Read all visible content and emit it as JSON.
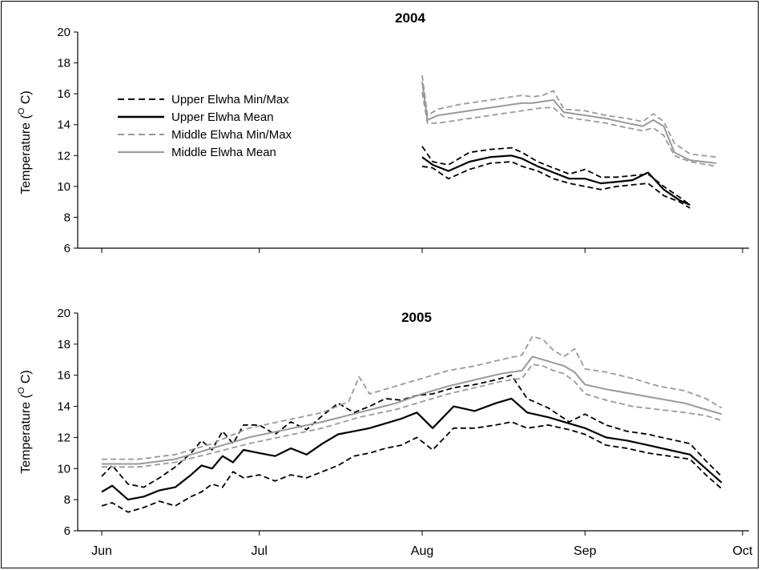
{
  "colors": {
    "upper": "#000000",
    "middle": "#999999"
  },
  "chart_data": [
    {
      "type": "line",
      "title": "2004",
      "xlabel": "",
      "ylabel": "Temperature (O C)",
      "ylabel_parts": {
        "pre": "Temperature (",
        "sup": "O",
        "post": " C)"
      },
      "ylim": [
        6,
        20
      ],
      "yticks": [
        "6",
        "8",
        "10",
        "12",
        "14",
        "16",
        "18",
        "20"
      ],
      "xlim": [
        "Jun 1",
        "Oct 1"
      ],
      "legend": "top-left",
      "series": [
        {
          "name": "Upper Elwha Min/Max",
          "role": "upper-max",
          "style": "dashed",
          "color": "#000000",
          "x": [
            "Aug 1",
            "Aug 3",
            "Aug 6",
            "Aug 10",
            "Aug 14",
            "Aug 18",
            "Aug 20",
            "Aug 23",
            "Aug 26",
            "Aug 29",
            "Sep 1",
            "Sep 4",
            "Sep 7",
            "Sep 10",
            "Sep 13",
            "Sep 16",
            "Sep 19",
            "Sep 21"
          ],
          "values": [
            12.6,
            11.6,
            11.4,
            12.2,
            12.4,
            12.5,
            12.2,
            11.6,
            11.2,
            10.8,
            11.1,
            10.6,
            10.6,
            10.7,
            10.8,
            10.0,
            9.3,
            8.8
          ]
        },
        {
          "name": "Upper Elwha Min/Max",
          "role": "upper-min",
          "style": "dashed",
          "color": "#000000",
          "x": [
            "Aug 1",
            "Aug 3",
            "Aug 6",
            "Aug 10",
            "Aug 14",
            "Aug 18",
            "Aug 20",
            "Aug 23",
            "Aug 26",
            "Aug 29",
            "Sep 1",
            "Sep 4",
            "Sep 7",
            "Sep 10",
            "Sep 13",
            "Sep 16",
            "Sep 19",
            "Sep 21"
          ],
          "values": [
            11.3,
            11.2,
            10.5,
            11.1,
            11.5,
            11.6,
            11.3,
            11.0,
            10.5,
            10.2,
            10.0,
            9.8,
            10.0,
            10.1,
            10.2,
            9.4,
            9.0,
            8.6
          ]
        },
        {
          "name": "Upper Elwha Mean",
          "role": "upper-mean",
          "style": "solid",
          "color": "#000000",
          "x": [
            "Aug 1",
            "Aug 3",
            "Aug 6",
            "Aug 10",
            "Aug 14",
            "Aug 18",
            "Aug 20",
            "Aug 23",
            "Aug 26",
            "Aug 29",
            "Sep 1",
            "Sep 4",
            "Sep 7",
            "Sep 10",
            "Sep 13",
            "Sep 16",
            "Sep 19",
            "Sep 21"
          ],
          "values": [
            11.9,
            11.4,
            11.0,
            11.6,
            11.9,
            12.0,
            11.8,
            11.3,
            10.9,
            10.5,
            10.5,
            10.2,
            10.3,
            10.4,
            10.9,
            9.8,
            9.1,
            8.8
          ]
        },
        {
          "name": "Middle Elwha Min/Max",
          "role": "middle-max",
          "style": "dashed",
          "color": "#999999",
          "x": [
            "Aug 1",
            "Aug 2",
            "Aug 4",
            "Aug 8",
            "Aug 12",
            "Aug 16",
            "Aug 20",
            "Aug 22",
            "Aug 24",
            "Aug 26",
            "Aug 28",
            "Sep 1",
            "Sep 5",
            "Sep 9",
            "Sep 12",
            "Sep 14",
            "Sep 16",
            "Sep 18",
            "Sep 21",
            "Sep 26"
          ],
          "values": [
            17.2,
            14.6,
            15.0,
            15.3,
            15.5,
            15.7,
            15.9,
            15.8,
            15.9,
            16.2,
            15.0,
            14.9,
            14.6,
            14.4,
            14.2,
            14.7,
            14.2,
            12.8,
            12.1,
            11.9
          ]
        },
        {
          "name": "Middle Elwha Min/Max",
          "role": "middle-min",
          "style": "dashed",
          "color": "#999999",
          "x": [
            "Aug 1",
            "Aug 2",
            "Aug 4",
            "Aug 8",
            "Aug 12",
            "Aug 16",
            "Aug 20",
            "Aug 22",
            "Aug 24",
            "Aug 26",
            "Aug 28",
            "Sep 1",
            "Sep 5",
            "Sep 9",
            "Sep 12",
            "Sep 14",
            "Sep 16",
            "Sep 18",
            "Sep 21",
            "Sep 26"
          ],
          "values": [
            16.1,
            14.1,
            14.1,
            14.3,
            14.5,
            14.7,
            14.9,
            15.0,
            15.1,
            15.1,
            14.5,
            14.3,
            14.1,
            13.8,
            13.6,
            13.8,
            13.3,
            12.0,
            11.6,
            11.3
          ]
        },
        {
          "name": "Middle Elwha Mean",
          "role": "middle-mean",
          "style": "solid",
          "color": "#999999",
          "x": [
            "Aug 1",
            "Aug 2",
            "Aug 4",
            "Aug 8",
            "Aug 12",
            "Aug 16",
            "Aug 20",
            "Aug 22",
            "Aug 24",
            "Aug 26",
            "Aug 28",
            "Sep 1",
            "Sep 5",
            "Sep 9",
            "Sep 12",
            "Sep 14",
            "Sep 16",
            "Sep 18",
            "Sep 21",
            "Sep 26"
          ],
          "values": [
            16.8,
            14.3,
            14.6,
            14.8,
            15.0,
            15.2,
            15.4,
            15.4,
            15.5,
            15.6,
            14.8,
            14.6,
            14.4,
            14.1,
            13.9,
            14.3,
            13.9,
            12.2,
            11.7,
            11.5
          ]
        }
      ]
    },
    {
      "type": "line",
      "title": "2005",
      "xlabel": "",
      "ylabel": "Temperature (O C)",
      "ylabel_parts": {
        "pre": "Temperature (",
        "sup": "O",
        "post": " C)"
      },
      "ylim": [
        6,
        20
      ],
      "yticks": [
        "6",
        "8",
        "10",
        "12",
        "14",
        "16",
        "18",
        "20"
      ],
      "xlim": [
        "Jun 1",
        "Oct 1"
      ],
      "xticks": [
        "Jun",
        "Jul",
        "Aug",
        "Sep",
        "Oct"
      ],
      "series": [
        {
          "name": "Upper Elwha Min/Max",
          "role": "upper-max",
          "style": "dashed",
          "color": "#000000",
          "x": [
            "Jun 1",
            "Jun 3",
            "Jun 6",
            "Jun 9",
            "Jun 12",
            "Jun 15",
            "Jun 18",
            "Jun 20",
            "Jun 22",
            "Jun 24",
            "Jun 26",
            "Jun 28",
            "Jul 1",
            "Jul 4",
            "Jul 7",
            "Jul 10",
            "Jul 13",
            "Jul 16",
            "Jul 19",
            "Jul 22",
            "Jul 25",
            "Jul 28",
            "Jul 31",
            "Aug 3",
            "Aug 7",
            "Aug 11",
            "Aug 15",
            "Aug 18",
            "Aug 21",
            "Aug 25",
            "Aug 29",
            "Sep 1",
            "Sep 5",
            "Sep 9",
            "Sep 13",
            "Sep 17",
            "Sep 21",
            "Sep 24",
            "Sep 27"
          ],
          "values": [
            9.5,
            10.2,
            9.0,
            8.8,
            9.4,
            10.1,
            11.0,
            11.8,
            11.2,
            12.4,
            11.6,
            12.8,
            12.8,
            12.2,
            13.0,
            12.5,
            13.4,
            14.2,
            13.6,
            14.0,
            14.5,
            14.4,
            14.7,
            14.8,
            15.2,
            15.4,
            15.7,
            16.0,
            14.5,
            13.9,
            13.0,
            13.5,
            12.8,
            12.4,
            12.2,
            11.9,
            11.6,
            10.5,
            9.5
          ]
        },
        {
          "name": "Upper Elwha Min/Max",
          "role": "upper-min",
          "style": "dashed",
          "color": "#000000",
          "x": [
            "Jun 1",
            "Jun 3",
            "Jun 6",
            "Jun 9",
            "Jun 12",
            "Jun 15",
            "Jun 18",
            "Jun 20",
            "Jun 22",
            "Jun 24",
            "Jun 26",
            "Jun 28",
            "Jul 1",
            "Jul 4",
            "Jul 7",
            "Jul 10",
            "Jul 13",
            "Jul 16",
            "Jul 19",
            "Jul 22",
            "Jul 25",
            "Jul 28",
            "Jul 31",
            "Aug 3",
            "Aug 7",
            "Aug 11",
            "Aug 15",
            "Aug 18",
            "Aug 21",
            "Aug 25",
            "Aug 29",
            "Sep 1",
            "Sep 5",
            "Sep 9",
            "Sep 13",
            "Sep 17",
            "Sep 21",
            "Sep 24",
            "Sep 27"
          ],
          "values": [
            7.6,
            7.8,
            7.2,
            7.5,
            7.9,
            7.6,
            8.2,
            8.5,
            9.0,
            8.8,
            9.8,
            9.4,
            9.6,
            9.2,
            9.6,
            9.4,
            9.8,
            10.2,
            10.8,
            11.0,
            11.3,
            11.5,
            12.0,
            11.2,
            12.6,
            12.6,
            12.8,
            13.0,
            12.6,
            12.8,
            12.5,
            12.2,
            11.5,
            11.3,
            11.0,
            10.8,
            10.6,
            9.6,
            8.7
          ]
        },
        {
          "name": "Upper Elwha Mean",
          "role": "upper-mean",
          "style": "solid",
          "color": "#000000",
          "x": [
            "Jun 1",
            "Jun 3",
            "Jun 6",
            "Jun 9",
            "Jun 12",
            "Jun 15",
            "Jun 18",
            "Jun 20",
            "Jun 22",
            "Jun 24",
            "Jun 26",
            "Jun 28",
            "Jul 1",
            "Jul 4",
            "Jul 7",
            "Jul 10",
            "Jul 13",
            "Jul 16",
            "Jul 19",
            "Jul 22",
            "Jul 25",
            "Jul 28",
            "Jul 31",
            "Aug 3",
            "Aug 7",
            "Aug 11",
            "Aug 15",
            "Aug 18",
            "Aug 21",
            "Aug 25",
            "Aug 29",
            "Sep 1",
            "Sep 5",
            "Sep 9",
            "Sep 13",
            "Sep 17",
            "Sep 21",
            "Sep 24",
            "Sep 27"
          ],
          "values": [
            8.5,
            8.9,
            8.0,
            8.2,
            8.6,
            8.8,
            9.6,
            10.2,
            10.0,
            10.8,
            10.4,
            11.2,
            11.0,
            10.8,
            11.3,
            10.9,
            11.6,
            12.2,
            12.4,
            12.6,
            12.9,
            13.2,
            13.6,
            12.6,
            14.0,
            13.7,
            14.2,
            14.5,
            13.6,
            13.3,
            12.9,
            12.6,
            12.0,
            11.8,
            11.5,
            11.2,
            10.9,
            10.0,
            9.1
          ]
        },
        {
          "name": "Middle Elwha Min/Max",
          "role": "middle-max",
          "style": "dashed",
          "color": "#999999",
          "x": [
            "Jun 1",
            "Jun 8",
            "Jun 15",
            "Jun 22",
            "Jun 29",
            "Jul 6",
            "Jul 13",
            "Jul 18",
            "Jul 20",
            "Jul 22",
            "Jul 27",
            "Aug 1",
            "Aug 6",
            "Aug 11",
            "Aug 16",
            "Aug 20",
            "Aug 22",
            "Aug 24",
            "Aug 26",
            "Aug 28",
            "Aug 30",
            "Sep 1",
            "Sep 5",
            "Sep 10",
            "Sep 15",
            "Sep 20",
            "Sep 24",
            "Sep 27"
          ],
          "values": [
            10.6,
            10.6,
            10.9,
            11.6,
            12.6,
            13.1,
            13.6,
            14.3,
            15.9,
            14.8,
            15.3,
            15.8,
            16.3,
            16.6,
            17.0,
            17.3,
            18.5,
            18.3,
            17.6,
            17.2,
            17.7,
            16.4,
            16.2,
            15.8,
            15.3,
            15.0,
            14.5,
            13.9
          ]
        },
        {
          "name": "Middle Elwha Min/Max",
          "role": "middle-min",
          "style": "dashed",
          "color": "#999999",
          "x": [
            "Jun 1",
            "Jun 8",
            "Jun 15",
            "Jun 22",
            "Jun 29",
            "Jul 6",
            "Jul 13",
            "Jul 20",
            "Jul 27",
            "Aug 1",
            "Aug 6",
            "Aug 11",
            "Aug 16",
            "Aug 20",
            "Aug 22",
            "Aug 24",
            "Aug 26",
            "Aug 28",
            "Aug 30",
            "Sep 1",
            "Sep 5",
            "Sep 10",
            "Sep 15",
            "Sep 20",
            "Sep 24",
            "Sep 27"
          ],
          "values": [
            10.1,
            10.1,
            10.4,
            11.0,
            11.6,
            12.1,
            12.6,
            13.3,
            13.8,
            14.3,
            14.8,
            15.2,
            15.6,
            15.8,
            16.7,
            16.6,
            16.3,
            16.1,
            15.6,
            14.8,
            14.4,
            14.0,
            13.8,
            13.6,
            13.4,
            13.1
          ]
        },
        {
          "name": "Middle Elwha Mean",
          "role": "middle-mean",
          "style": "solid",
          "color": "#999999",
          "x": [
            "Jun 1",
            "Jun 8",
            "Jun 15",
            "Jun 22",
            "Jun 29",
            "Jul 6",
            "Jul 13",
            "Jul 20",
            "Jul 27",
            "Aug 1",
            "Aug 6",
            "Aug 11",
            "Aug 16",
            "Aug 20",
            "Aug 22",
            "Aug 24",
            "Aug 26",
            "Aug 28",
            "Aug 30",
            "Sep 1",
            "Sep 5",
            "Sep 10",
            "Sep 15",
            "Sep 20",
            "Sep 24",
            "Sep 27"
          ],
          "values": [
            10.3,
            10.3,
            10.6,
            11.3,
            12.0,
            12.5,
            13.0,
            13.6,
            14.2,
            14.8,
            15.3,
            15.7,
            16.1,
            16.3,
            17.2,
            17.0,
            16.8,
            16.6,
            16.2,
            15.4,
            15.1,
            14.8,
            14.5,
            14.2,
            13.8,
            13.5
          ]
        }
      ]
    }
  ],
  "legend": {
    "items": [
      {
        "label": "Upper Elwha Min/Max",
        "color": "#000000",
        "style": "dashed"
      },
      {
        "label": "Upper Elwha Mean",
        "color": "#000000",
        "style": "solid"
      },
      {
        "label": "Middle Elwha Min/Max",
        "color": "#999999",
        "style": "dashed"
      },
      {
        "label": "Middle Elwha Mean",
        "color": "#999999",
        "style": "solid"
      }
    ]
  }
}
